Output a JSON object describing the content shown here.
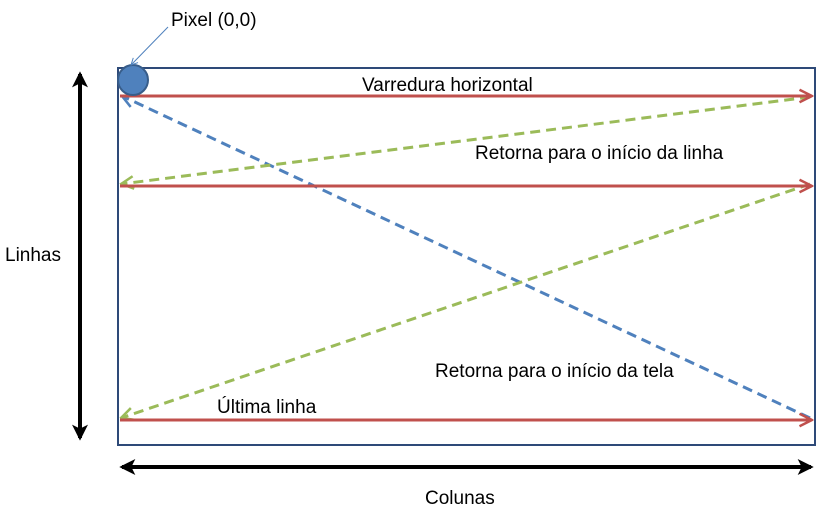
{
  "labels": {
    "pixel_origin": "Pixel (0,0)",
    "horizontal_scan": "Varredura horizontal",
    "return_line_start": "Retorna para o início da linha",
    "return_screen_start": "Retorna para o início da tela",
    "last_line": "Última linha",
    "rows_axis": "Linhas",
    "columns_axis": "Colunas"
  },
  "colors": {
    "frame": "#2e4a78",
    "scan_line": "#c0504d",
    "horizontal_retrace": "#9bbb59",
    "vertical_retrace": "#4f81bd",
    "pixel_fill": "#4f81bd",
    "pixel_stroke": "#385d8a",
    "axis_arrow": "#000000",
    "callout": "#4f81bd"
  }
}
